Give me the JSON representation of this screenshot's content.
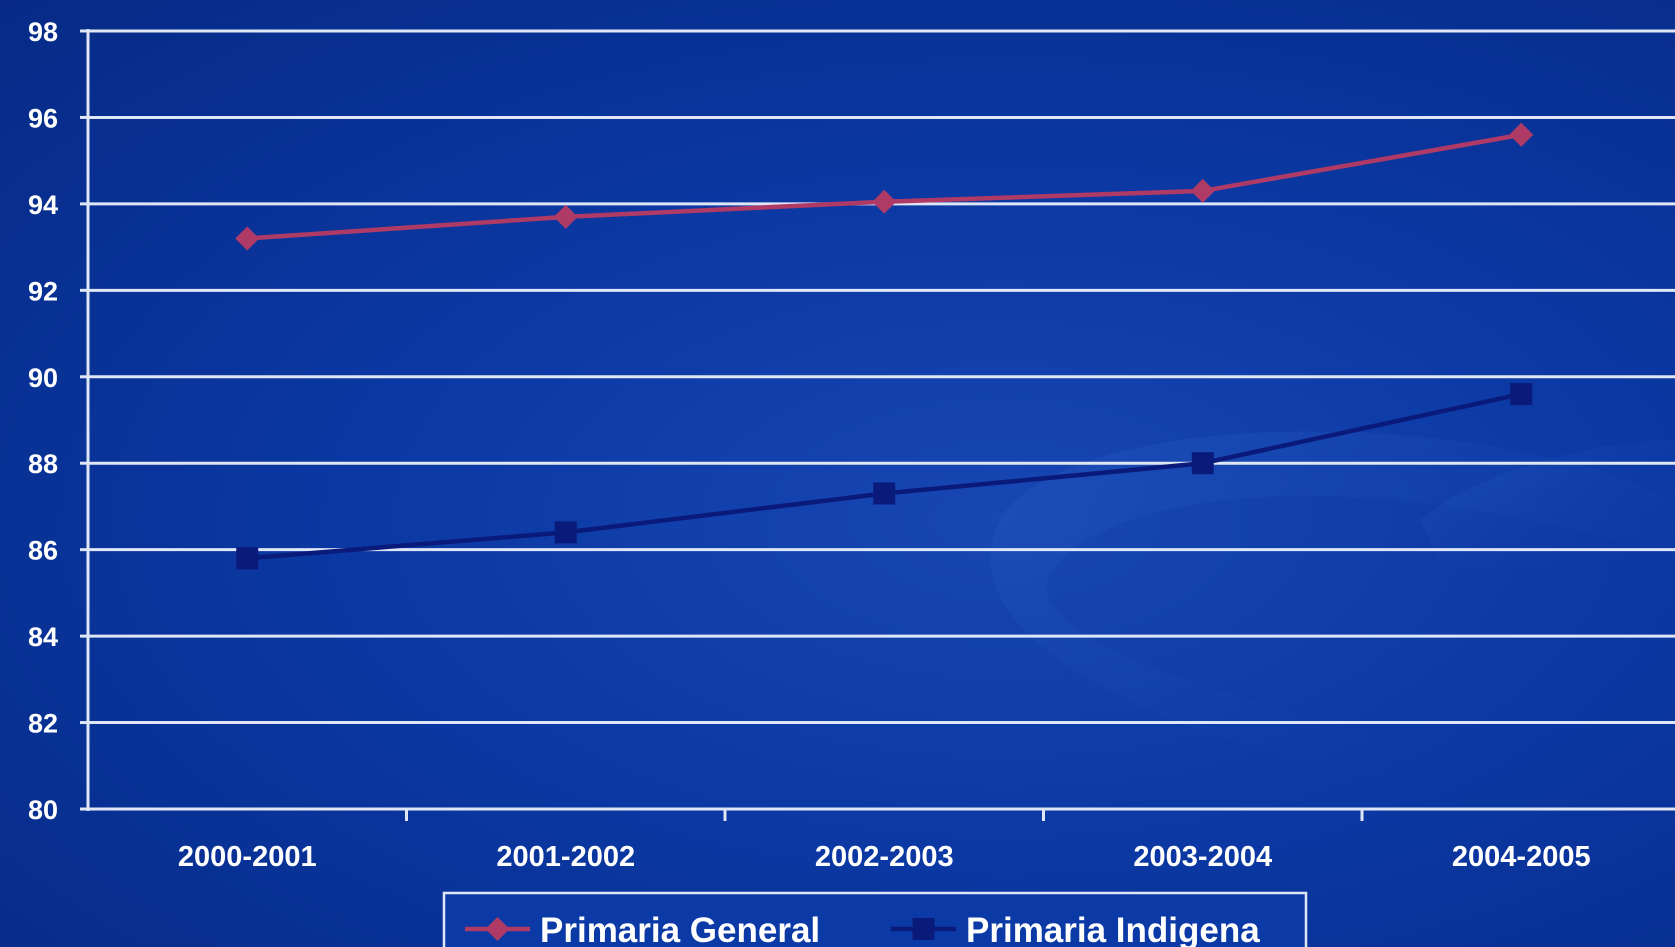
{
  "chart_data": {
    "type": "line",
    "categories": [
      "2000-2001",
      "2001-2002",
      "2002-2003",
      "2003-2004",
      "2004-2005"
    ],
    "series": [
      {
        "name": "Primaria General",
        "values": [
          93.2,
          93.7,
          94.05,
          94.3,
          95.6
        ],
        "color": "#b03a66",
        "marker": "diamond"
      },
      {
        "name": "Primaria Indigena",
        "values": [
          85.8,
          86.4,
          87.3,
          88.0,
          89.6
        ],
        "color": "#0a1a7a",
        "marker": "square"
      }
    ],
    "ylim": [
      80,
      98
    ],
    "yticks": [
      80,
      82,
      84,
      86,
      88,
      90,
      92,
      94,
      96,
      98
    ],
    "grid": true,
    "legend_position": "bottom",
    "colors": {
      "background": "#0b38a3",
      "gridline": "#dfe6f5",
      "tick_label": "#ffffff"
    }
  }
}
